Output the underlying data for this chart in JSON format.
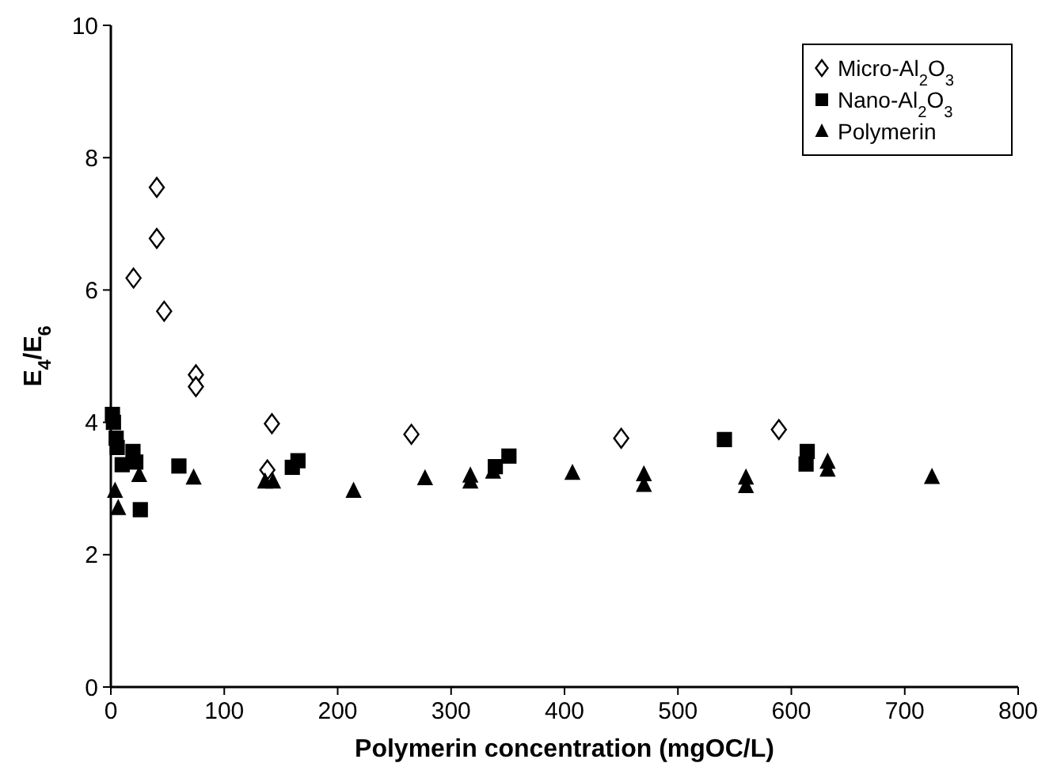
{
  "chart_data": {
    "type": "scatter",
    "xlabel": "Polymerin concentration (mgOC/L)",
    "ylabel": "E$_{4}$/E$_{6}$",
    "xlim": [
      0,
      800
    ],
    "xticks": [
      0,
      100,
      200,
      300,
      400,
      500,
      600,
      700,
      800
    ],
    "ylim": [
      0,
      10
    ],
    "yticks": [
      0,
      2,
      4,
      6,
      8,
      10
    ],
    "grid": false,
    "legend": "top right",
    "series": [
      {
        "name": "Micro-Al$_{2}$O$_{3}$",
        "color": "#000000",
        "marker": "diamond",
        "x": [
          40.5,
          40.5,
          20,
          47,
          75,
          75,
          142,
          138,
          265,
          450,
          589
        ],
        "values": [
          7.55,
          6.78,
          6.18,
          5.68,
          4.72,
          4.54,
          3.98,
          3.28,
          3.82,
          3.76,
          3.89
        ]
      },
      {
        "name": "Nano-Al$_{2}$O$_{3}$",
        "color": "#000000",
        "marker": "square",
        "x": [
          1.4,
          2.3,
          4.7,
          5.6,
          10,
          19.5,
          22,
          26,
          60,
          160,
          165,
          339,
          351,
          541,
          613,
          614
        ],
        "values": [
          4.12,
          4.0,
          3.76,
          3.62,
          3.36,
          3.56,
          3.4,
          2.68,
          3.34,
          3.32,
          3.42,
          3.33,
          3.49,
          3.74,
          3.37,
          3.56
        ]
      },
      {
        "name": "Polymerin",
        "color": "#000000",
        "marker": "triangle",
        "x": [
          3.7,
          6.5,
          25,
          73,
          136,
          143,
          214,
          277,
          317,
          317,
          337,
          407,
          470,
          470,
          560,
          560,
          632,
          632,
          724
        ],
        "values": [
          2.96,
          2.7,
          3.2,
          3.16,
          3.1,
          3.1,
          2.96,
          3.15,
          3.19,
          3.1,
          3.25,
          3.23,
          3.21,
          3.05,
          3.16,
          3.03,
          3.4,
          3.28,
          3.17
        ]
      }
    ]
  }
}
